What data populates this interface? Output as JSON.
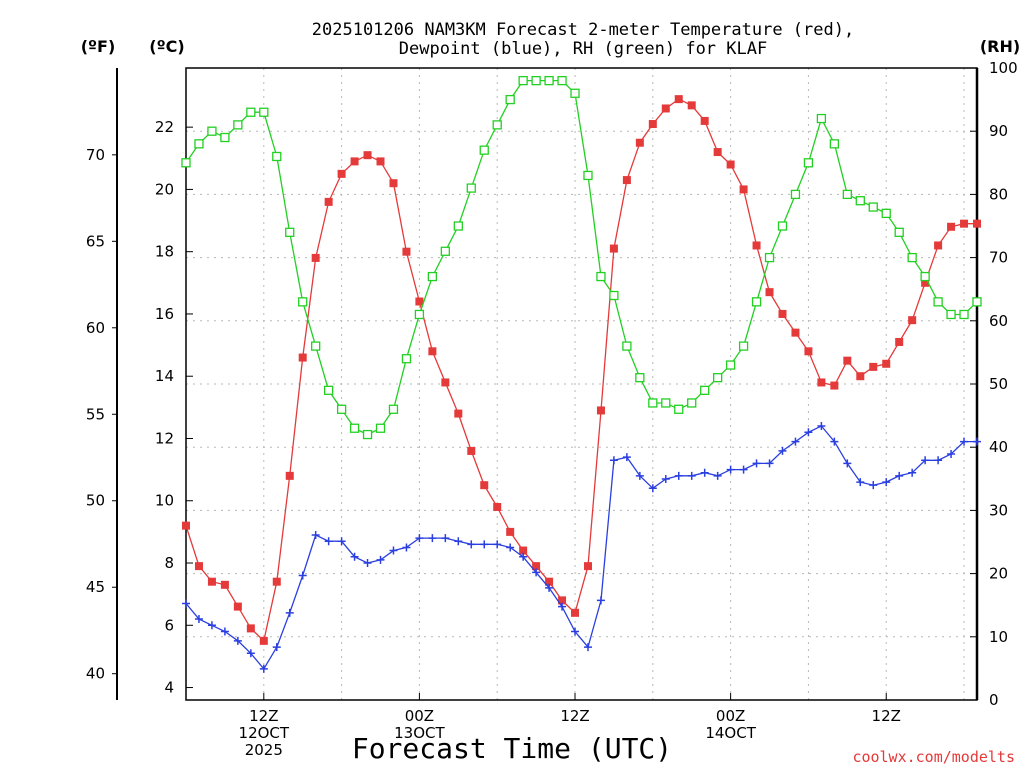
{
  "chart_data": {
    "type": "line",
    "title_line1": "2025101206 NAM3KM Forecast 2-meter Temperature (red),",
    "title_line2": "Dewpoint (blue), RH (green) for KLAF",
    "xlabel": "Forecast Time (UTC)",
    "credit": "coolwx.com/modelts",
    "left_outer_unit": "(ºF)",
    "left_inner_unit": "(ºC)",
    "right_unit": "(RH)",
    "x_range_hours": [
      0,
      61
    ],
    "y_celsius_range": [
      3.6,
      23.9
    ],
    "rh_range": [
      0,
      100
    ],
    "celsius_ticks": [
      4,
      6,
      8,
      10,
      12,
      14,
      16,
      18,
      20,
      22
    ],
    "fahrenheit_ticks": [
      40,
      45,
      50,
      55,
      60,
      65,
      70
    ],
    "rh_ticks": [
      0,
      10,
      20,
      30,
      40,
      50,
      60,
      70,
      80,
      90,
      100
    ],
    "x_ticks": [
      {
        "hour": 6,
        "labels": [
          "12Z",
          "12OCT",
          "2025"
        ]
      },
      {
        "hour": 18,
        "labels": [
          "00Z",
          "13OCT"
        ]
      },
      {
        "hour": 30,
        "labels": [
          "12Z"
        ]
      },
      {
        "hour": 42,
        "labels": [
          "00Z",
          "14OCT"
        ]
      },
      {
        "hour": 54,
        "labels": [
          "12Z"
        ]
      }
    ],
    "colors": {
      "temperature": "#e43a3a",
      "dewpoint": "#2a3fe0",
      "rh": "#22d022",
      "grid": "#b8b8b8"
    },
    "series": [
      {
        "name": "Temperature",
        "unit": "C",
        "x": [
          0,
          1,
          2,
          3,
          4,
          5,
          6,
          7,
          8,
          9,
          10,
          11,
          12,
          13,
          14,
          15,
          16,
          17,
          18,
          19,
          20,
          21,
          22,
          23,
          24,
          25,
          26,
          27,
          28,
          29,
          30,
          31,
          32,
          33,
          34,
          35,
          36,
          37,
          38,
          39,
          40,
          41,
          42,
          43,
          44,
          45,
          46,
          47,
          48,
          49,
          50,
          51,
          52,
          53,
          54,
          55,
          56,
          57,
          58,
          59,
          60,
          61
        ],
        "values": [
          9.2,
          7.9,
          7.4,
          7.3,
          6.6,
          5.9,
          5.5,
          7.4,
          10.8,
          14.6,
          17.8,
          19.6,
          20.5,
          20.9,
          21.1,
          20.9,
          20.2,
          18.0,
          16.4,
          14.8,
          13.8,
          12.8,
          11.6,
          10.5,
          9.8,
          9.0,
          8.4,
          7.9,
          7.4,
          6.8,
          6.4,
          7.9,
          12.9,
          18.1,
          20.3,
          21.5,
          22.1,
          22.6,
          22.9,
          22.7,
          22.2,
          21.2,
          20.8,
          20.0,
          18.2,
          16.7,
          16.0,
          15.4,
          14.8,
          13.8,
          13.7,
          14.5,
          14.0,
          14.3,
          14.4,
          15.1,
          15.8,
          17.0,
          18.2,
          18.8,
          18.9,
          18.9
        ]
      },
      {
        "name": "Dewpoint",
        "unit": "C",
        "x": [
          0,
          1,
          2,
          3,
          4,
          5,
          6,
          7,
          8,
          9,
          10,
          11,
          12,
          13,
          14,
          15,
          16,
          17,
          18,
          19,
          20,
          21,
          22,
          23,
          24,
          25,
          26,
          27,
          28,
          29,
          30,
          31,
          32,
          33,
          34,
          35,
          36,
          37,
          38,
          39,
          40,
          41,
          42,
          43,
          44,
          45,
          46,
          47,
          48,
          49,
          50,
          51,
          52,
          53,
          54,
          55,
          56,
          57,
          58,
          59,
          60,
          61
        ],
        "values": [
          6.7,
          6.2,
          6.0,
          5.8,
          5.5,
          5.1,
          4.6,
          5.3,
          6.4,
          7.6,
          8.9,
          8.7,
          8.7,
          8.2,
          8.0,
          8.1,
          8.4,
          8.5,
          8.8,
          8.8,
          8.8,
          8.7,
          8.6,
          8.6,
          8.6,
          8.5,
          8.2,
          7.7,
          7.2,
          6.6,
          5.8,
          5.3,
          6.8,
          11.3,
          11.4,
          10.8,
          10.4,
          10.7,
          10.8,
          10.8,
          10.9,
          10.8,
          11.0,
          11.0,
          11.2,
          11.2,
          11.6,
          11.9,
          12.2,
          12.4,
          11.9,
          11.2,
          10.6,
          10.5,
          10.6,
          10.8,
          10.9,
          11.3,
          11.3,
          11.5,
          11.9,
          11.9
        ]
      },
      {
        "name": "RH",
        "unit": "%",
        "x": [
          0,
          1,
          2,
          3,
          4,
          5,
          6,
          7,
          8,
          9,
          10,
          11,
          12,
          13,
          14,
          15,
          16,
          17,
          18,
          19,
          20,
          21,
          22,
          23,
          24,
          25,
          26,
          27,
          28,
          29,
          30,
          31,
          32,
          33,
          34,
          35,
          36,
          37,
          38,
          39,
          40,
          41,
          42,
          43,
          44,
          45,
          46,
          47,
          48,
          49,
          50,
          51,
          52,
          53,
          54,
          55,
          56,
          57,
          58,
          59,
          60,
          61
        ],
        "values": [
          85,
          88,
          90,
          89,
          91,
          93,
          93,
          86,
          74,
          63,
          56,
          49,
          46,
          43,
          42,
          43,
          46,
          54,
          61,
          67,
          71,
          75,
          81,
          87,
          91,
          95,
          98,
          98,
          98,
          98,
          96,
          83,
          67,
          64,
          56,
          51,
          47,
          47,
          46,
          47,
          49,
          51,
          53,
          56,
          63,
          70,
          75,
          80,
          85,
          92,
          88,
          80,
          79,
          78,
          77,
          74,
          70,
          67,
          63,
          61,
          61,
          63
        ]
      }
    ]
  }
}
